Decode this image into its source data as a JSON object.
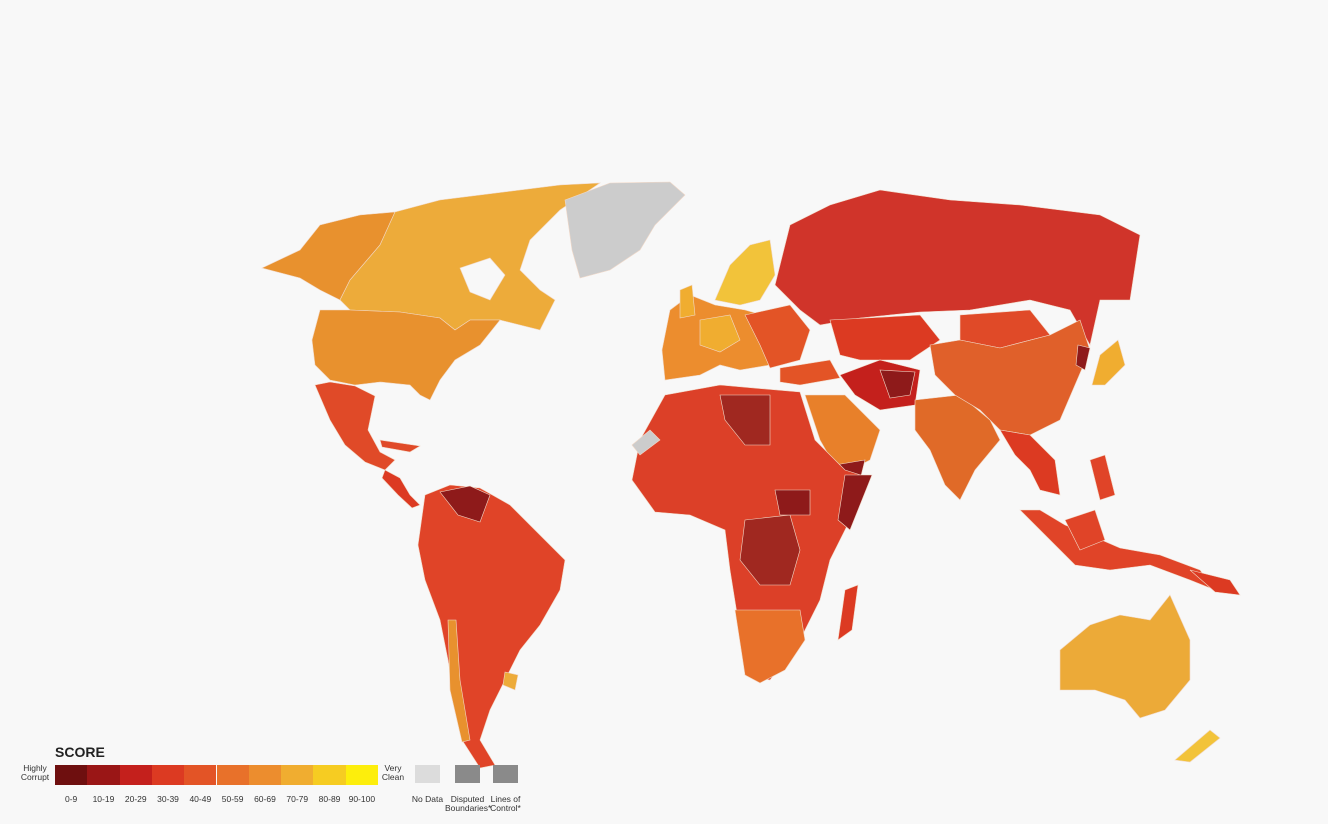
{
  "legend": {
    "title": "SCORE",
    "low_label": "Highly Corrupt",
    "high_label": "Very Clean",
    "bins": [
      {
        "label": "0-9",
        "color": "#6e0f0f"
      },
      {
        "label": "10-19",
        "color": "#9a1616"
      },
      {
        "label": "20-29",
        "color": "#c4201c"
      },
      {
        "label": "30-39",
        "color": "#dc3a22"
      },
      {
        "label": "40-49",
        "color": "#e35426"
      },
      {
        "label": "50-59",
        "color": "#e8712a"
      },
      {
        "label": "60-69",
        "color": "#ec8d2e"
      },
      {
        "label": "70-79",
        "color": "#f0ad30"
      },
      {
        "label": "80-89",
        "color": "#f6cc22"
      },
      {
        "label": "90-100",
        "color": "#fdee0c"
      }
    ],
    "extras": [
      {
        "label": "No Data",
        "color": "#dcdcdc"
      },
      {
        "label": "Disputed Boundaries*",
        "color": "#8a8a8a"
      },
      {
        "label": "Lines of Control*",
        "color": "#8a8a8a"
      }
    ]
  }
}
